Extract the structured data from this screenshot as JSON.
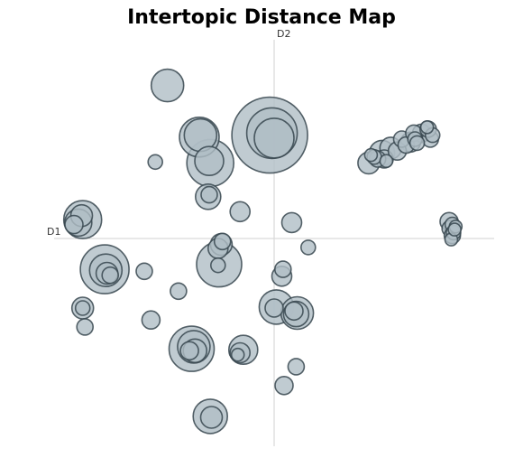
{
  "chart_data": {
    "type": "scatter",
    "title": "Intertopic Distance Map",
    "xlabel": "D1",
    "ylabel": "D2",
    "xlim": [
      -1.0,
      1.0
    ],
    "ylim": [
      -1.0,
      1.0
    ],
    "grid": false,
    "colors": {
      "fill": "#b0bec5",
      "stroke": "#37474f",
      "axis": "#d9d9d9"
    },
    "points": [
      {
        "x": -0.485,
        "y": 0.77,
        "size": 18
      },
      {
        "x": -0.02,
        "y": 0.52,
        "size": 42
      },
      {
        "x": -0.01,
        "y": 0.53,
        "size": 28
      },
      {
        "x": 0.0,
        "y": 0.505,
        "size": 22
      },
      {
        "x": -0.34,
        "y": 0.51,
        "size": 22
      },
      {
        "x": -0.335,
        "y": 0.52,
        "size": 18
      },
      {
        "x": -0.29,
        "y": 0.38,
        "size": 26
      },
      {
        "x": -0.295,
        "y": 0.39,
        "size": 16
      },
      {
        "x": -0.54,
        "y": 0.385,
        "size": 8
      },
      {
        "x": -0.3,
        "y": 0.21,
        "size": 14
      },
      {
        "x": -0.295,
        "y": 0.22,
        "size": 9
      },
      {
        "x": -0.155,
        "y": 0.135,
        "size": 11
      },
      {
        "x": 0.08,
        "y": 0.08,
        "size": 11
      },
      {
        "x": -0.87,
        "y": 0.095,
        "size": 21
      },
      {
        "x": -0.89,
        "y": 0.08,
        "size": 15
      },
      {
        "x": -0.875,
        "y": 0.115,
        "size": 12
      },
      {
        "x": -0.91,
        "y": 0.07,
        "size": 10
      },
      {
        "x": 0.155,
        "y": -0.045,
        "size": 8
      },
      {
        "x": -0.24,
        "y": -0.03,
        "size": 12
      },
      {
        "x": -0.235,
        "y": -0.015,
        "size": 9
      },
      {
        "x": -0.255,
        "y": -0.05,
        "size": 11
      },
      {
        "x": -0.25,
        "y": -0.13,
        "size": 25
      },
      {
        "x": -0.255,
        "y": -0.135,
        "size": 8
      },
      {
        "x": -0.77,
        "y": -0.155,
        "size": 27
      },
      {
        "x": -0.765,
        "y": -0.16,
        "size": 18
      },
      {
        "x": -0.76,
        "y": -0.175,
        "size": 12
      },
      {
        "x": -0.745,
        "y": -0.185,
        "size": 9
      },
      {
        "x": -0.59,
        "y": -0.165,
        "size": 9
      },
      {
        "x": 0.04,
        "y": -0.155,
        "size": 9
      },
      {
        "x": 0.035,
        "y": -0.19,
        "size": 11
      },
      {
        "x": -0.435,
        "y": -0.265,
        "size": 9
      },
      {
        "x": -0.87,
        "y": -0.35,
        "size": 12
      },
      {
        "x": -0.87,
        "y": -0.35,
        "size": 8
      },
      {
        "x": 0.01,
        "y": -0.345,
        "size": 19
      },
      {
        "x": 0.0,
        "y": -0.35,
        "size": 10
      },
      {
        "x": 0.105,
        "y": -0.375,
        "size": 18
      },
      {
        "x": 0.1,
        "y": -0.38,
        "size": 14
      },
      {
        "x": 0.09,
        "y": -0.365,
        "size": 10
      },
      {
        "x": -0.56,
        "y": -0.41,
        "size": 10
      },
      {
        "x": -0.86,
        "y": -0.445,
        "size": 9
      },
      {
        "x": -0.375,
        "y": -0.555,
        "size": 25
      },
      {
        "x": -0.365,
        "y": -0.545,
        "size": 18
      },
      {
        "x": -0.36,
        "y": -0.565,
        "size": 13
      },
      {
        "x": -0.385,
        "y": -0.565,
        "size": 10
      },
      {
        "x": -0.14,
        "y": -0.56,
        "size": 16
      },
      {
        "x": -0.155,
        "y": -0.575,
        "size": 11
      },
      {
        "x": -0.165,
        "y": -0.585,
        "size": 7
      },
      {
        "x": 0.1,
        "y": -0.645,
        "size": 9
      },
      {
        "x": 0.045,
        "y": -0.74,
        "size": 10
      },
      {
        "x": -0.29,
        "y": -0.895,
        "size": 19
      },
      {
        "x": -0.285,
        "y": -0.9,
        "size": 12
      },
      {
        "x": 0.49,
        "y": 0.43,
        "size": 14
      },
      {
        "x": 0.53,
        "y": 0.455,
        "size": 12
      },
      {
        "x": 0.5,
        "y": 0.4,
        "size": 10
      },
      {
        "x": 0.56,
        "y": 0.44,
        "size": 10
      },
      {
        "x": 0.58,
        "y": 0.5,
        "size": 9
      },
      {
        "x": 0.62,
        "y": 0.485,
        "size": 11
      },
      {
        "x": 0.6,
        "y": 0.47,
        "size": 9
      },
      {
        "x": 0.64,
        "y": 0.5,
        "size": 8
      },
      {
        "x": 0.635,
        "y": 0.53,
        "size": 9
      },
      {
        "x": 0.65,
        "y": 0.48,
        "size": 8
      },
      {
        "x": 0.67,
        "y": 0.53,
        "size": 10
      },
      {
        "x": 0.71,
        "y": 0.5,
        "size": 9
      },
      {
        "x": 0.72,
        "y": 0.52,
        "size": 8
      },
      {
        "x": 0.7,
        "y": 0.55,
        "size": 9
      },
      {
        "x": 0.695,
        "y": 0.56,
        "size": 7
      },
      {
        "x": 0.43,
        "y": 0.38,
        "size": 12
      },
      {
        "x": 0.47,
        "y": 0.4,
        "size": 9
      },
      {
        "x": 0.455,
        "y": 0.41,
        "size": 8
      },
      {
        "x": 0.44,
        "y": 0.42,
        "size": 7
      },
      {
        "x": 0.51,
        "y": 0.39,
        "size": 7
      },
      {
        "x": 0.795,
        "y": 0.085,
        "size": 10
      },
      {
        "x": 0.81,
        "y": 0.07,
        "size": 8
      },
      {
        "x": 0.8,
        "y": 0.05,
        "size": 9
      },
      {
        "x": 0.815,
        "y": 0.03,
        "size": 8
      },
      {
        "x": 0.805,
        "y": -0.005,
        "size": 7
      },
      {
        "x": 0.825,
        "y": 0.06,
        "size": 7
      },
      {
        "x": 0.82,
        "y": 0.045,
        "size": 7
      },
      {
        "x": 0.81,
        "y": 0.015,
        "size": 9
      }
    ]
  }
}
